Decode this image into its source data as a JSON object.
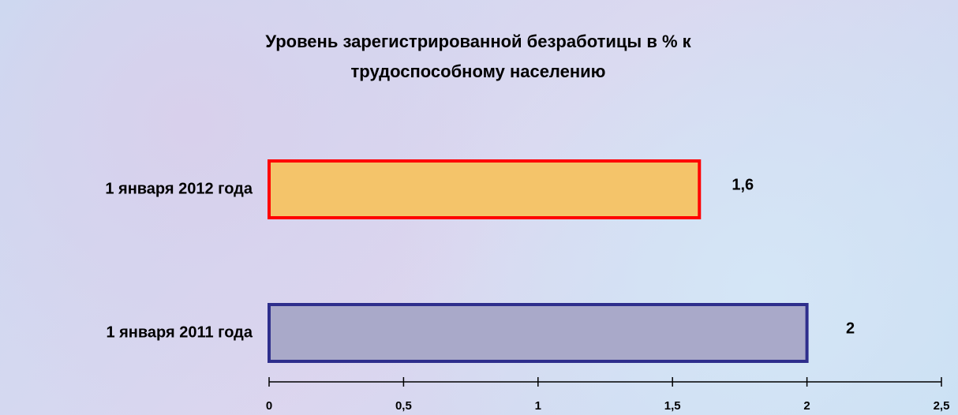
{
  "chart_data": {
    "type": "barh",
    "title": "Уровень зарегистрированной безработицы в % к трудоспособному населению",
    "categories": [
      "1 января 2012 года",
      "1 января 2011 года"
    ],
    "values": [
      1.6,
      2
    ],
    "value_labels": [
      "1,6",
      "2"
    ],
    "colors": [
      "#f4c46a",
      "#a9a9c9"
    ],
    "edgecolors": [
      "#ff0000",
      "#2e2e8c"
    ],
    "xlim": [
      0,
      2.5
    ],
    "xticks": [
      0,
      {
        "value": 0.5,
        "label": "0,5"
      },
      1,
      {
        "value": 1.5,
        "label": "1,5"
      },
      2,
      {
        "value": 2.5,
        "label": "2,5"
      }
    ]
  }
}
